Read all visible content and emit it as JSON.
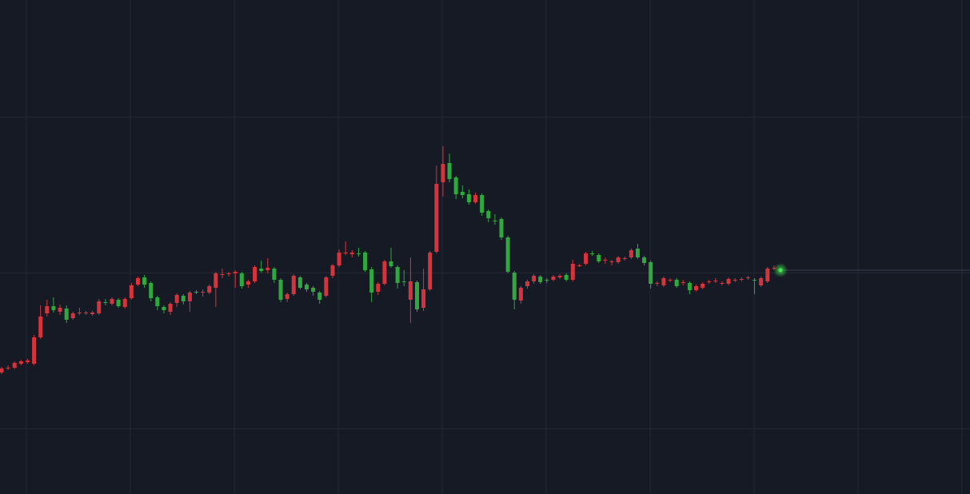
{
  "chart_data": {
    "type": "candlestick",
    "categories": [
      null,
      null,
      null,
      null,
      null,
      null,
      null,
      null,
      null,
      null,
      null,
      null,
      null,
      null,
      null,
      null,
      null,
      null,
      null,
      null,
      null,
      null,
      null,
      null,
      null,
      null,
      null,
      null,
      null,
      null,
      null,
      null,
      null,
      null,
      null,
      null,
      null,
      null,
      null,
      null,
      null,
      null,
      null,
      null,
      null,
      null,
      null,
      null,
      null,
      null,
      null,
      null,
      null,
      null,
      null,
      null,
      null,
      null,
      null,
      null,
      null,
      null,
      null,
      null,
      null,
      null,
      null,
      null,
      null,
      null,
      null,
      null,
      null,
      null,
      null,
      null,
      null,
      null,
      null,
      null,
      null,
      null,
      null,
      null,
      null,
      null,
      null,
      null,
      null,
      null,
      null,
      null,
      null,
      null,
      null,
      null,
      null,
      null,
      null,
      null,
      null,
      null,
      null,
      null,
      null,
      null,
      null,
      null,
      null,
      null,
      null,
      null,
      null,
      null,
      null,
      null,
      null,
      null,
      null,
      null,
      null
    ],
    "open": [
      152,
      157,
      158,
      163,
      165,
      163,
      196,
      226,
      235,
      228,
      232,
      220,
      226,
      226,
      225,
      226,
      240,
      238,
      243,
      234,
      245,
      262,
      271,
      264,
      246,
      234,
      228,
      239,
      248,
      241,
      253,
      252,
      252,
      258,
      274,
      275,
      276,
      276,
      262,
      266,
      282,
      280,
      282,
      268,
      244,
      250,
      271,
      262,
      258,
      252,
      248,
      273,
      286,
      301,
      300,
      301,
      302,
      281,
      253,
      263,
      291,
      284,
      266,
      243,
      265,
      233,
      256,
      303,
      390,
      414,
      396,
      378,
      375,
      365,
      374,
      354,
      342,
      344,
      321,
      277,
      242,
      260,
      266,
      272,
      268,
      268,
      271,
      274,
      268,
      285,
      288,
      301,
      299,
      292,
      290,
      290,
      294,
      296,
      307,
      296,
      290,
      263,
      261,
      267,
      268,
      264,
      264,
      255,
      258,
      265,
      266,
      263,
      263,
      267,
      268,
      270,
      268,
      261,
      266,
      282,
      281
    ],
    "high": [
      159,
      161,
      166,
      168,
      169,
      199,
      236,
      243,
      246,
      237,
      236,
      228,
      233,
      229,
      229,
      244,
      244,
      246,
      245,
      246,
      264,
      272,
      274,
      266,
      248,
      236,
      240,
      251,
      250,
      254,
      255,
      256,
      262,
      278,
      282,
      278,
      280,
      278,
      268,
      286,
      292,
      295,
      284,
      270,
      252,
      275,
      273,
      264,
      260,
      254,
      273,
      288,
      306,
      316,
      305,
      308,
      304,
      284,
      265,
      293,
      308,
      286,
      280,
      296,
      267,
      282,
      304,
      411,
      435,
      426,
      398,
      386,
      381,
      377,
      376,
      356,
      350,
      346,
      323,
      279,
      260,
      268,
      275,
      274,
      270,
      274,
      275,
      276,
      293,
      288,
      303,
      304,
      301,
      296,
      293,
      298,
      297,
      307,
      313,
      298,
      292,
      266,
      272,
      270,
      270,
      268,
      266,
      262,
      265,
      268,
      270,
      266,
      271,
      270,
      271,
      273,
      270,
      272,
      284,
      286,
      282
    ],
    "low": [
      150,
      155,
      156,
      161,
      163,
      161,
      194,
      222,
      227,
      224,
      214,
      218,
      224,
      224,
      223,
      224,
      236,
      236,
      233,
      232,
      243,
      260,
      258,
      241,
      230,
      226,
      224,
      234,
      237,
      228,
      250,
      247,
      250,
      234,
      270,
      272,
      258,
      257,
      258,
      264,
      277,
      276,
      264,
      240,
      240,
      248,
      256,
      253,
      248,
      238,
      246,
      270,
      284,
      299,
      296,
      297,
      278,
      240,
      249,
      261,
      283,
      257,
      260,
      214,
      228,
      229,
      254,
      301,
      372,
      390,
      369,
      370,
      362,
      363,
      348,
      340,
      337,
      318,
      276,
      231,
      238,
      257,
      263,
      263,
      264,
      266,
      269,
      266,
      266,
      284,
      286,
      298,
      289,
      288,
      286,
      288,
      292,
      294,
      294,
      286,
      257,
      260,
      259,
      265,
      258,
      261,
      250,
      253,
      256,
      263,
      264,
      261,
      261,
      265,
      266,
      268,
      250,
      259,
      264,
      280,
      279
    ],
    "close": [
      157,
      158,
      164,
      166,
      167,
      196,
      222,
      235,
      230,
      233,
      218,
      226,
      227,
      227,
      227,
      241,
      239,
      244,
      235,
      244,
      261,
      270,
      262,
      245,
      235,
      230,
      238,
      249,
      241,
      252,
      252,
      253,
      260,
      276,
      275,
      276,
      278,
      260,
      266,
      284,
      279,
      283,
      268,
      243,
      250,
      273,
      258,
      256,
      253,
      243,
      271,
      286,
      302,
      302,
      302,
      300,
      280,
      252,
      263,
      291,
      285,
      264,
      265,
      266,
      231,
      256,
      302,
      388,
      413,
      394,
      375,
      374,
      365,
      374,
      352,
      345,
      341,
      321,
      278,
      243,
      258,
      266,
      273,
      265,
      267,
      272,
      273,
      268,
      288,
      286,
      301,
      300,
      291,
      293,
      291,
      296,
      295,
      305,
      296,
      289,
      263,
      264,
      270,
      268,
      260,
      265,
      255,
      260,
      263,
      266,
      267,
      264,
      269,
      268,
      269,
      271,
      267,
      270,
      282,
      283,
      280
    ],
    "up_color": "#d5343c",
    "down_color": "#2fa83f",
    "ylim": [
      0,
      618
    ],
    "yticks": [
      82,
      277,
      472
    ],
    "grid": true
  }
}
